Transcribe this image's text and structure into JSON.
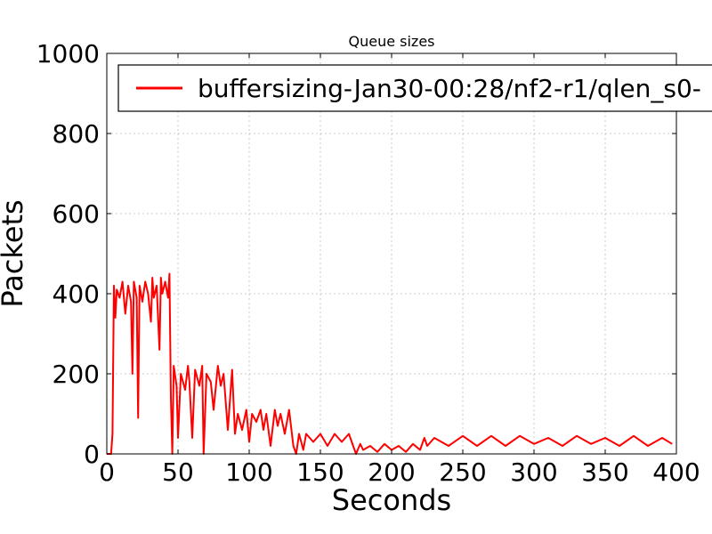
{
  "chart_data": {
    "type": "line",
    "title": "Queue sizes",
    "xlabel": "Seconds",
    "ylabel": "Packets",
    "xlim": [
      0,
      400
    ],
    "ylim": [
      0,
      1000
    ],
    "x_ticks": [
      "0",
      "50",
      "100",
      "150",
      "200",
      "250",
      "300",
      "350",
      "400"
    ],
    "y_ticks": [
      "0",
      "200",
      "400",
      "600",
      "800",
      "1000"
    ],
    "grid": true,
    "legend": {
      "position": "top",
      "entries": [
        "buffersizing-Jan30-00:28/nf2-r1/qlen_s0-"
      ]
    },
    "series": [
      {
        "name": "buffersizing-Jan30-00:28/nf2-r1/qlen_s0-",
        "color": "#ff0000",
        "x": [
          0,
          3,
          4,
          5,
          6,
          7,
          9,
          11,
          13,
          15,
          17,
          18,
          19,
          21,
          22,
          23,
          25,
          27,
          29,
          31,
          32,
          33,
          35,
          37,
          38,
          39,
          41,
          43,
          44,
          45,
          46,
          47,
          49,
          50,
          52,
          55,
          57,
          58,
          60,
          62,
          65,
          67,
          68,
          70,
          73,
          75,
          78,
          80,
          82,
          85,
          88,
          90,
          92,
          95,
          98,
          100,
          102,
          105,
          108,
          110,
          112,
          115,
          118,
          120,
          122,
          125,
          128,
          131,
          133,
          135,
          138,
          140,
          145,
          150,
          155,
          160,
          165,
          170,
          175,
          178,
          180,
          185,
          190,
          195,
          200,
          205,
          210,
          215,
          220,
          223,
          225,
          230,
          240,
          250,
          260,
          270,
          280,
          290,
          300,
          310,
          320,
          330,
          340,
          350,
          360,
          370,
          380,
          390,
          397
        ],
        "y": [
          0,
          0,
          50,
          420,
          340,
          410,
          390,
          430,
          350,
          420,
          380,
          200,
          430,
          390,
          90,
          420,
          380,
          430,
          400,
          330,
          440,
          390,
          420,
          260,
          440,
          400,
          430,
          390,
          450,
          140,
          0,
          220,
          170,
          40,
          200,
          160,
          220,
          180,
          40,
          210,
          170,
          220,
          0,
          200,
          180,
          110,
          220,
          170,
          200,
          60,
          210,
          50,
          100,
          60,
          110,
          30,
          100,
          80,
          110,
          60,
          100,
          20,
          110,
          70,
          100,
          50,
          110,
          20,
          0,
          50,
          10,
          50,
          30,
          50,
          20,
          50,
          30,
          50,
          0,
          25,
          10,
          20,
          5,
          25,
          10,
          20,
          5,
          25,
          10,
          40,
          20,
          40,
          20,
          45,
          20,
          45,
          20,
          45,
          25,
          40,
          20,
          45,
          25,
          40,
          20,
          45,
          20,
          40,
          25
        ]
      }
    ]
  }
}
